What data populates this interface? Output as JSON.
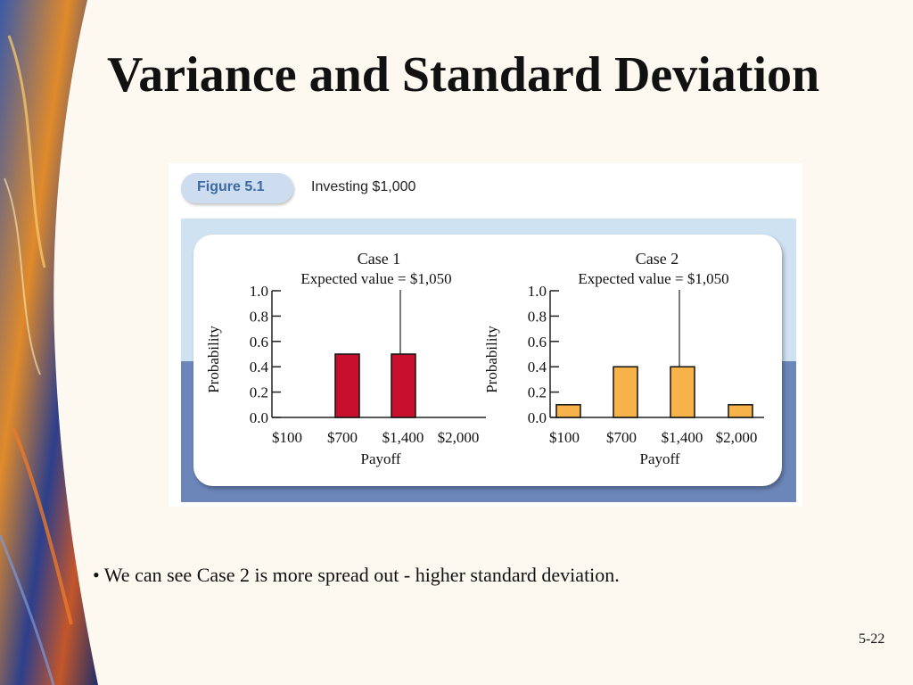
{
  "slide": {
    "title": "Variance and Standard Deviation",
    "bullet": "• We can see Case 2 is more spread out - higher standard deviation.",
    "page_number": "5-22"
  },
  "figure": {
    "tag": "Figure 5.1",
    "caption": "Investing $1,000"
  },
  "colors": {
    "case1_bar": "#c8102e",
    "case2_bar": "#f7b24a",
    "tag_bg": "#cddcee",
    "band_top": "#cfe2f2",
    "band_bottom": "#6c86ba"
  },
  "chart_data": [
    {
      "type": "bar",
      "title": "Case 1",
      "subtitle": "Expected value = $1,050",
      "xlabel": "Payoff",
      "ylabel": "Probability",
      "categories": [
        "$100",
        "$700",
        "$1,400",
        "$2,000"
      ],
      "values": [
        0,
        0.5,
        0.5,
        0
      ],
      "yticks": [
        "0.0",
        "0.2",
        "0.4",
        "0.6",
        "0.8",
        "1.0"
      ],
      "ylim": [
        0,
        1
      ],
      "expected_value_marker": 1050,
      "grid": false
    },
    {
      "type": "bar",
      "title": "Case 2",
      "subtitle": "Expected value = $1,050",
      "xlabel": "Payoff",
      "ylabel": "Probability",
      "categories": [
        "$100",
        "$700",
        "$1,400",
        "$2,000"
      ],
      "values": [
        0.1,
        0.4,
        0.4,
        0.1
      ],
      "yticks": [
        "0.0",
        "0.2",
        "0.4",
        "0.6",
        "0.8",
        "1.0"
      ],
      "ylim": [
        0,
        1
      ],
      "expected_value_marker": 1050,
      "grid": false
    }
  ]
}
